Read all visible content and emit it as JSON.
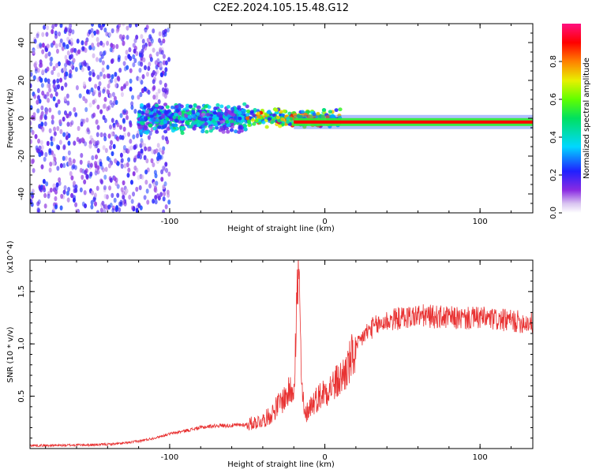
{
  "figure_title": "C2E2.2024.105.15.48.G12",
  "chart_data": [
    {
      "type": "heatmap",
      "title": "C2E2.2024.105.15.48.G12",
      "xlabel": "Height of straight line (km)",
      "ylabel": "Frequency (Hz)",
      "xlim": [
        -190,
        134
      ],
      "ylim": [
        -50,
        50
      ],
      "xticks": [
        -100,
        0,
        100
      ],
      "xtick_labels": [
        "-100",
        "0",
        "100"
      ],
      "yticks": [
        -40,
        -20,
        0,
        20,
        40
      ],
      "ytick_labels": [
        "-40",
        "-20",
        "0",
        "20",
        "40"
      ],
      "colorbar": {
        "label": "Normalized spectral amplitude",
        "range": [
          0,
          1
        ],
        "ticks": [
          0.0,
          0.2,
          0.4,
          0.6,
          0.8
        ],
        "tick_labels": [
          "0.0",
          "0.2",
          "0.4",
          "0.6",
          "0.8"
        ],
        "colormap": "rainbow (white/violet low to red/magenta high)"
      },
      "features": [
        {
          "description": "scattered low-amplitude violet/purple speckle",
          "x_range": [
            -190,
            -100
          ],
          "frequency_range": [
            -50,
            50
          ],
          "amplitude": 0.15
        },
        {
          "description": "blue/cyan band",
          "x_range": [
            -120,
            -50
          ],
          "frequency_range": [
            -8,
            8
          ],
          "amplitude": 0.3
        },
        {
          "description": "green/yellow band",
          "x_range": [
            -50,
            10
          ],
          "frequency_range": [
            -5,
            5
          ],
          "amplitude": 0.55
        },
        {
          "description": "strong red line with green halo",
          "x_range": [
            -20,
            134
          ],
          "center_frequency": -2,
          "amplitude": 0.9
        }
      ],
      "grid": false
    },
    {
      "type": "line",
      "xlabel": "Height of straight line (km)",
      "ylabel": "SNR (10 * v/v)",
      "scale_note": "(x10^4)",
      "xlim": [
        -190,
        134
      ],
      "ylim": [
        0,
        1.8
      ],
      "xticks": [
        -100,
        0,
        100
      ],
      "xtick_labels": [
        "-100",
        "0",
        "100"
      ],
      "yticks": [
        0.5,
        1.0,
        1.5
      ],
      "ytick_labels": [
        "0.5",
        "1.0",
        "1.5"
      ],
      "series_color": "#e83232",
      "x": [
        -190,
        -180,
        -170,
        -160,
        -150,
        -140,
        -130,
        -120,
        -110,
        -100,
        -90,
        -80,
        -70,
        -60,
        -50,
        -40,
        -35,
        -30,
        -25,
        -20,
        -17,
        -15,
        -13,
        -10,
        -5,
        0,
        5,
        10,
        15,
        20,
        25,
        30,
        40,
        50,
        60,
        70,
        80,
        90,
        100,
        110,
        120,
        134
      ],
      "y": [
        0.03,
        0.03,
        0.03,
        0.035,
        0.035,
        0.04,
        0.05,
        0.07,
        0.1,
        0.14,
        0.17,
        0.2,
        0.22,
        0.22,
        0.23,
        0.27,
        0.32,
        0.42,
        0.5,
        0.6,
        1.75,
        0.6,
        0.3,
        0.4,
        0.48,
        0.55,
        0.6,
        0.66,
        0.78,
        0.95,
        1.08,
        1.15,
        1.22,
        1.25,
        1.27,
        1.26,
        1.25,
        1.24,
        1.25,
        1.23,
        1.22,
        1.2
      ],
      "grid": false
    }
  ]
}
